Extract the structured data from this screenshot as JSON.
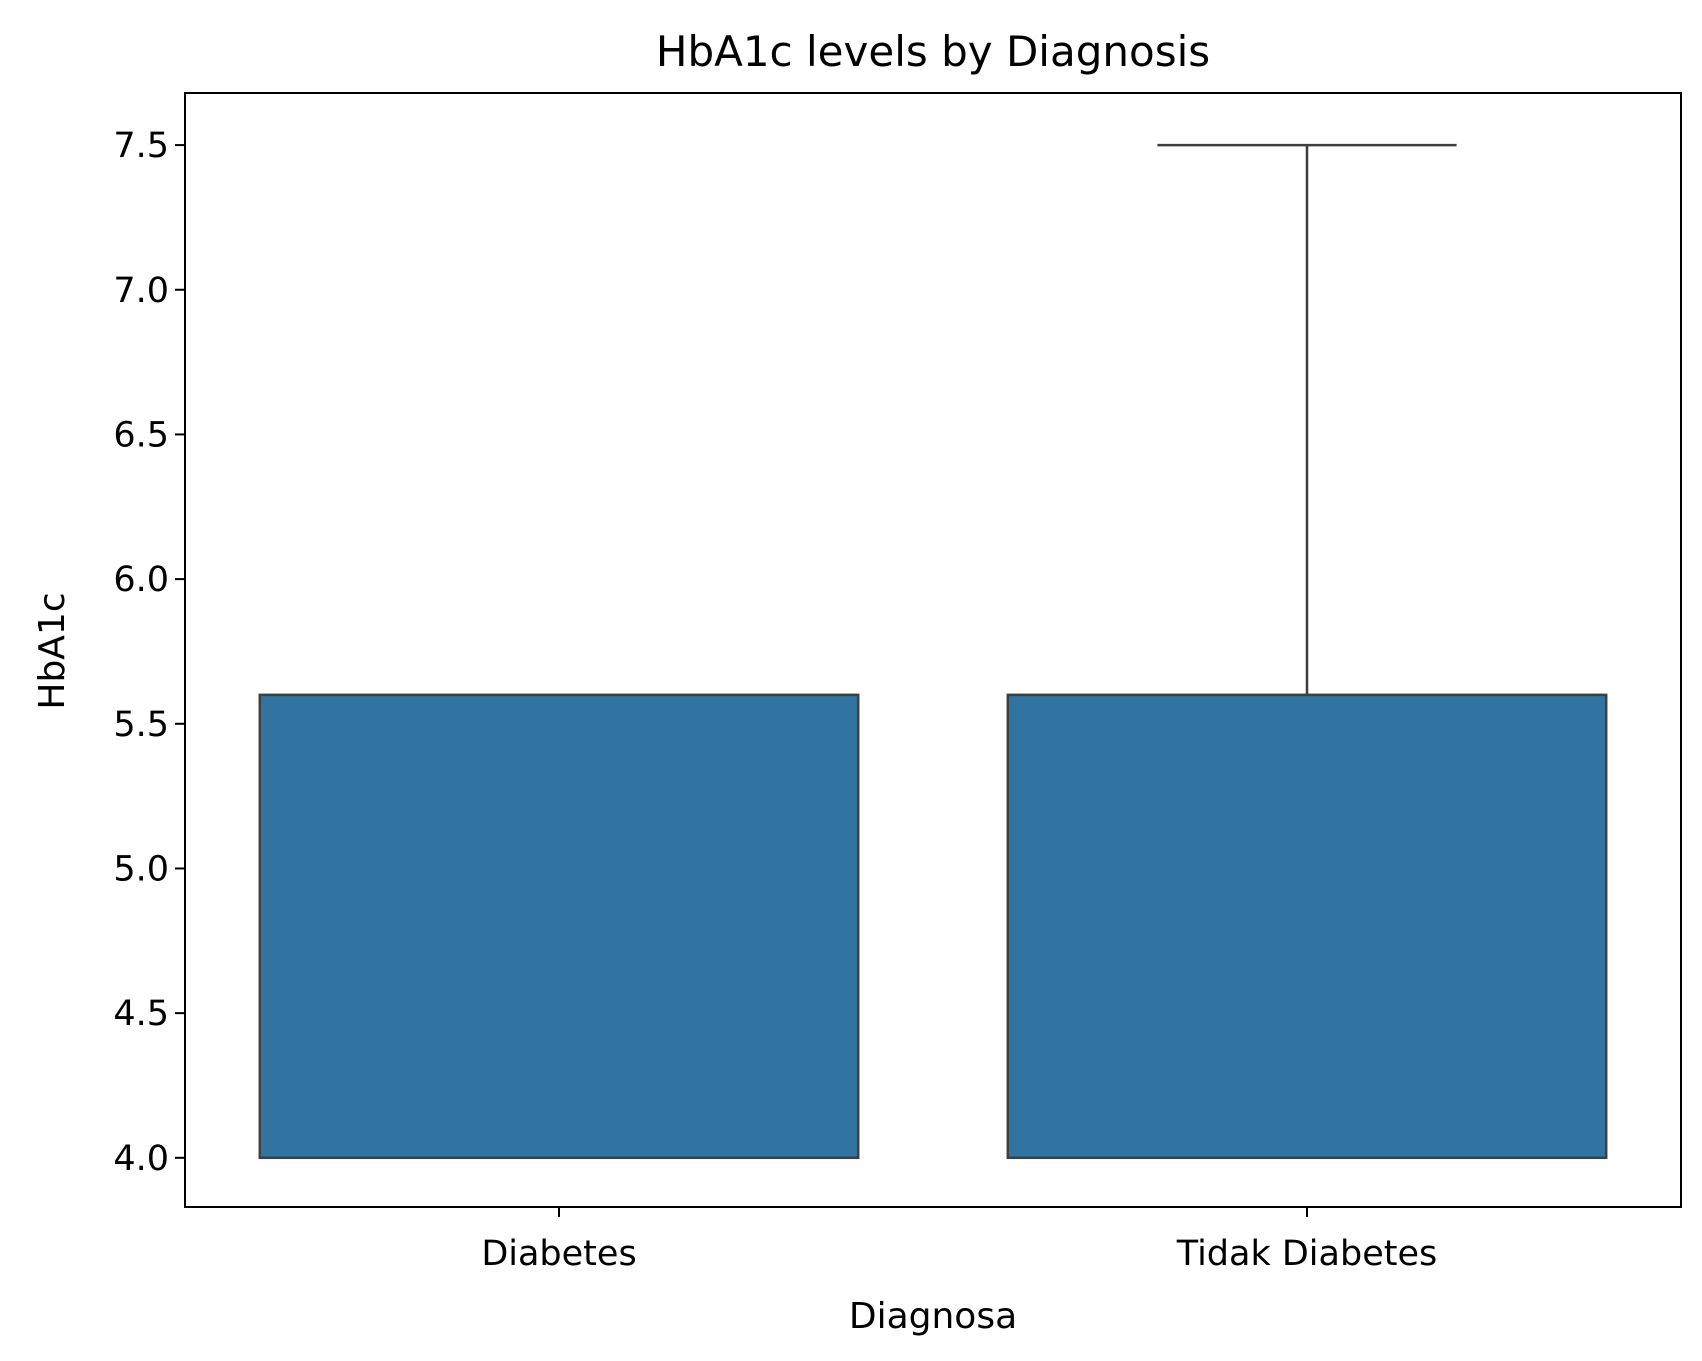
{
  "chart_data": {
    "type": "box",
    "title": "HbA1c levels by Diagnosis",
    "xlabel": "Diagnosa",
    "ylabel": "HbA1c",
    "ylim": [
      3.83,
      7.68
    ],
    "yticks": [
      "4.0",
      "4.5",
      "5.0",
      "5.5",
      "6.0",
      "6.5",
      "7.0",
      "7.5"
    ],
    "categories": [
      "Diabetes",
      "Tidak Diabetes"
    ],
    "boxes": [
      {
        "category": "Diabetes",
        "whisker_low": 4.0,
        "q1": 4.0,
        "median": 4.0,
        "q3": 5.6,
        "whisker_high": 5.6
      },
      {
        "category": "Tidak Diabetes",
        "whisker_low": 4.0,
        "q1": 4.0,
        "median": 4.0,
        "q3": 5.6,
        "whisker_high": 7.5
      }
    ],
    "box_color": "#3274a1",
    "line_color": "#3f3f3f",
    "grid": false,
    "legend": "none"
  }
}
